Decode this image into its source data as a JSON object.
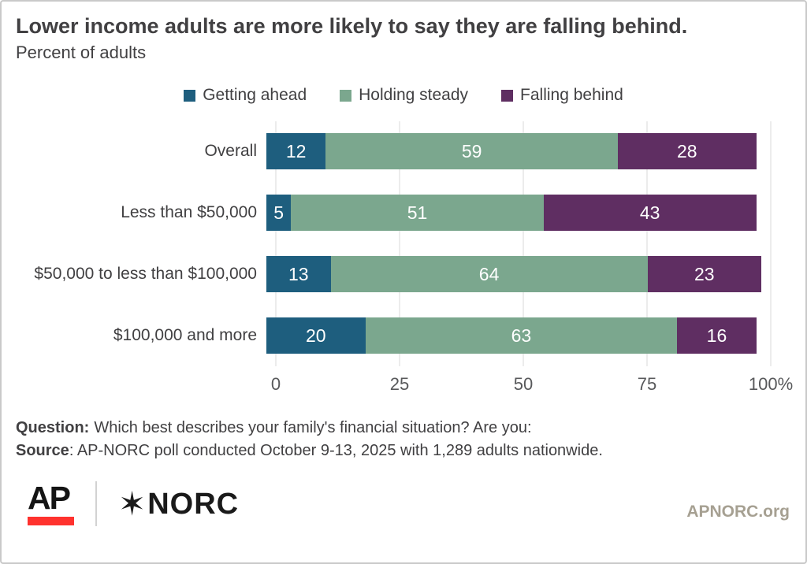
{
  "header": {
    "title": "Lower income adults are more likely to say they are falling behind.",
    "subtitle": "Percent of adults"
  },
  "chart_data": {
    "type": "bar",
    "orientation": "horizontal",
    "stacked": true,
    "title": "Lower income adults are more likely to say they are falling behind.",
    "subtitle": "Percent of adults",
    "categories": [
      "Overall",
      "Less than $50,000",
      "$50,000 to less than $100,000",
      "$100,000 and more"
    ],
    "series": [
      {
        "name": "Getting ahead",
        "color": "#1e5e7e",
        "values": [
          12,
          5,
          13,
          20
        ]
      },
      {
        "name": "Holding steady",
        "color": "#7ba78e",
        "values": [
          59,
          51,
          64,
          63
        ]
      },
      {
        "name": "Falling behind",
        "color": "#5f2e62",
        "values": [
          28,
          43,
          23,
          16
        ]
      }
    ],
    "xlim": [
      0,
      100
    ],
    "x_tick_values": [
      0,
      25,
      50,
      75,
      100
    ],
    "x_ticks": [
      "0",
      "25",
      "50",
      "75",
      "100%"
    ],
    "grid": true,
    "legend_position": "top",
    "value_labels": "inside-white"
  },
  "footnote": {
    "question_label": "Question:",
    "question_text": "Which best describes your family's financial situation? Are you:",
    "source_label": "Source",
    "source_text": ": AP-NORC poll conducted October 9-13, 2025 with 1,289 adults nationwide."
  },
  "footer": {
    "ap_logo_text": "AP",
    "ap_red": "#ff322e",
    "norc_star": "✶",
    "norc_logo_text": "NORC",
    "website": "APNORC.org"
  },
  "colors": {
    "text": "#414042",
    "axis_text": "#58595b",
    "gridline": "#d8d8d8",
    "border": "#c9c9c9",
    "site_link": "#a6a092"
  }
}
